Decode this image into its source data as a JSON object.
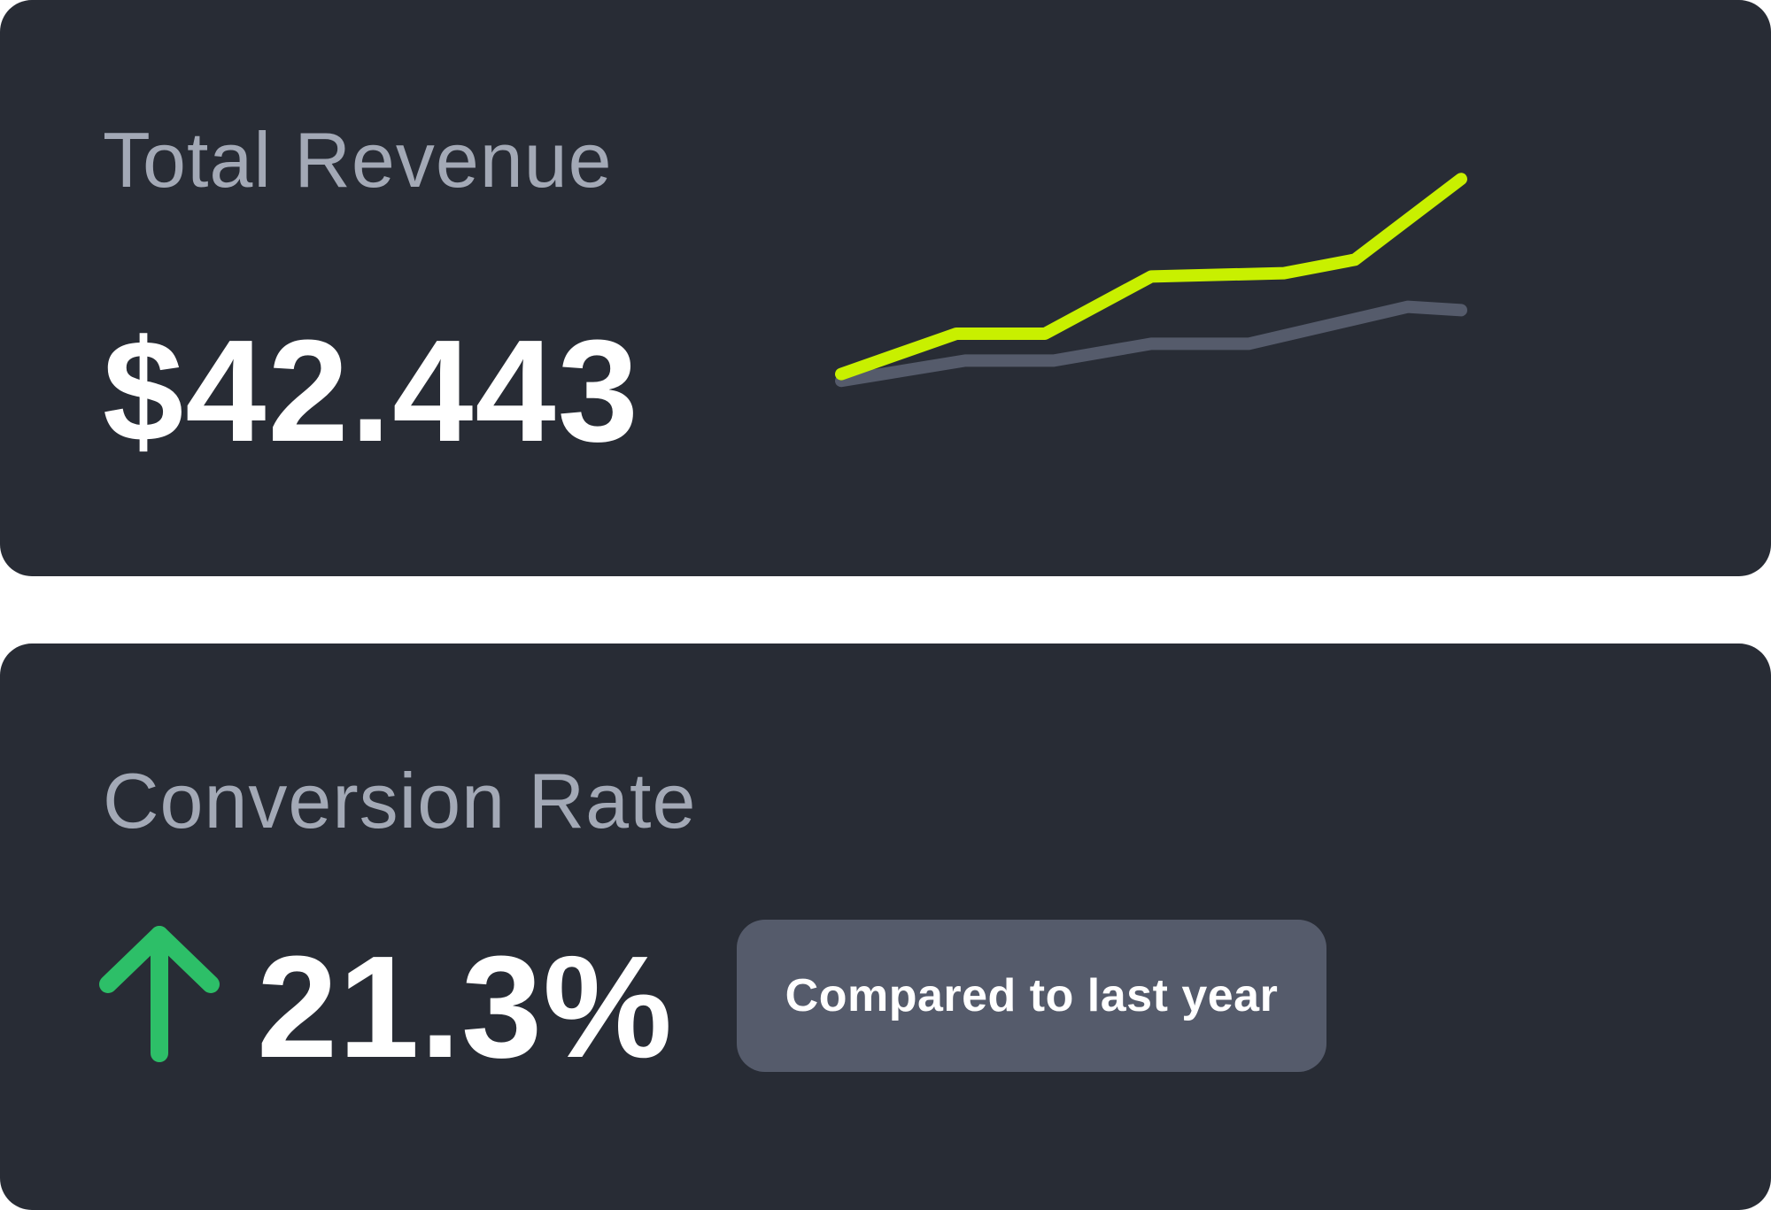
{
  "cards": {
    "revenue": {
      "title": "Total Revenue",
      "value": "$42.443"
    },
    "conversion": {
      "title": "Conversion Rate",
      "value": "21.3%",
      "trend_icon": "arrow-up-icon",
      "badge_label": "Compared to last year"
    }
  },
  "colors": {
    "card_background": "#282c35",
    "title_text": "#a3a9b6",
    "value_text": "#ffffff",
    "current_series": "#c8f000",
    "previous_series": "#555b6b",
    "trend_up": "#2dbf68",
    "badge_background": "#555b6b"
  },
  "chart_data": {
    "type": "line",
    "x": [
      0,
      1,
      2,
      3,
      4,
      5,
      6,
      7
    ],
    "ylim": [
      0,
      10
    ],
    "grid": false,
    "legend": "none",
    "series": [
      {
        "values": [
          2.3,
          3.5,
          3.5,
          5.2,
          5.3,
          5.7,
          8.1
        ],
        "x": [
          0,
          1.3,
          2.3,
          3.5,
          5,
          5.8,
          7
        ],
        "color": "#c8f000"
      },
      {
        "values": [
          2.1,
          2.7,
          2.7,
          3.2,
          3.2,
          4.3,
          4.2
        ],
        "x": [
          0,
          1.4,
          2.4,
          3.5,
          4.6,
          6.4,
          7
        ],
        "color": "#555b6b"
      }
    ]
  }
}
